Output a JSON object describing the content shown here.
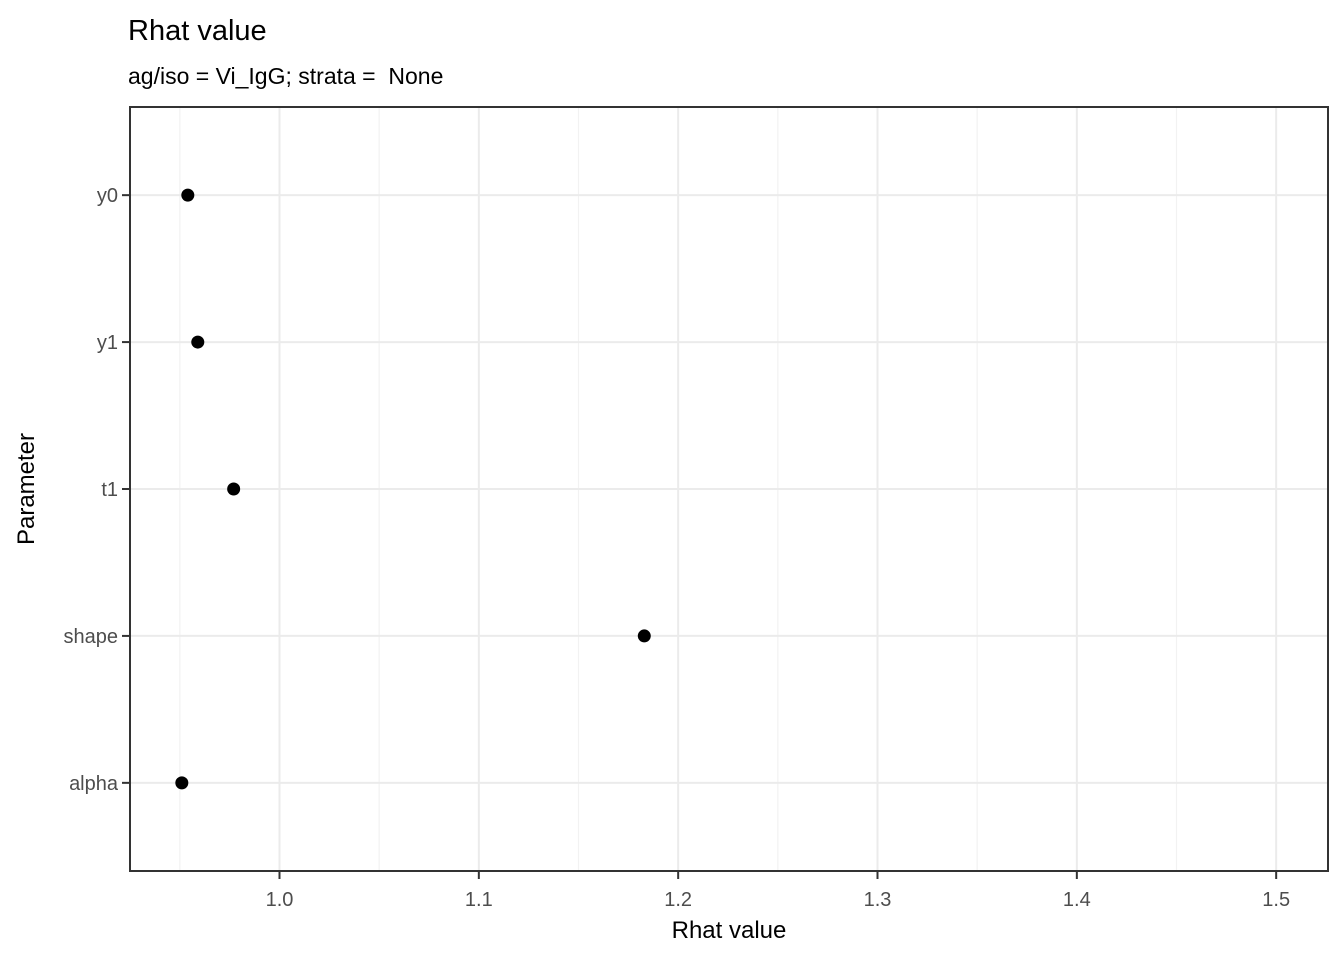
{
  "chart_data": {
    "type": "scatter",
    "title": "Rhat value",
    "subtitle": "ag/iso = Vi_IgG; strata =  None",
    "xlabel": "Rhat value",
    "ylabel": "Parameter",
    "categories": [
      "y0",
      "y1",
      "t1",
      "shape",
      "alpha"
    ],
    "values": [
      0.954,
      0.959,
      0.977,
      1.183,
      0.951
    ],
    "xlim": [
      0.925,
      1.526
    ],
    "x_major_ticks": [
      1.0,
      1.1,
      1.2,
      1.3,
      1.4,
      1.5
    ],
    "x_tick_labels": [
      "1.0",
      "1.1",
      "1.2",
      "1.3",
      "1.4",
      "1.5"
    ],
    "x_minor_ticks": [
      0.95,
      1.05,
      1.15,
      1.25,
      1.35,
      1.45
    ],
    "grid": true,
    "legend": "none",
    "colors": {
      "point": "#000000",
      "grid_major": "#ebebeb",
      "grid_minor": "#f2f2f2",
      "panel_border": "#333333",
      "tick": "#333333",
      "tick_label": "#4d4d4d",
      "title": "#000000"
    }
  }
}
